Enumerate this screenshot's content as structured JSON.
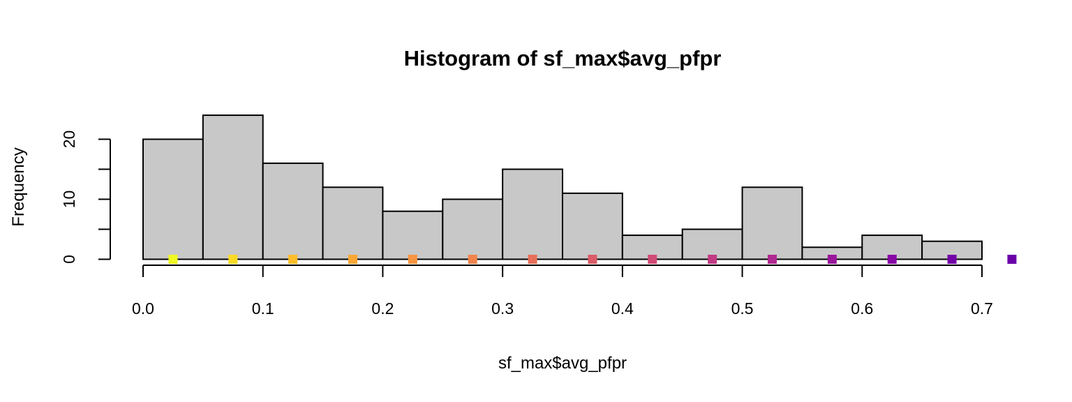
{
  "chart_data": {
    "type": "bar",
    "title": "Histogram of sf_max$avg_pfpr",
    "xlabel": "sf_max$avg_pfpr",
    "ylabel": "Frequency",
    "xlim": [
      0.0,
      0.7
    ],
    "ylim": [
      0,
      24
    ],
    "bin_width": 0.05,
    "bins": [
      {
        "x0": 0.0,
        "x1": 0.05,
        "count": 20
      },
      {
        "x0": 0.05,
        "x1": 0.1,
        "count": 24
      },
      {
        "x0": 0.1,
        "x1": 0.15,
        "count": 16
      },
      {
        "x0": 0.15,
        "x1": 0.2,
        "count": 12
      },
      {
        "x0": 0.2,
        "x1": 0.25,
        "count": 8
      },
      {
        "x0": 0.25,
        "x1": 0.3,
        "count": 10
      },
      {
        "x0": 0.3,
        "x1": 0.35,
        "count": 15
      },
      {
        "x0": 0.35,
        "x1": 0.4,
        "count": 11
      },
      {
        "x0": 0.4,
        "x1": 0.45,
        "count": 4
      },
      {
        "x0": 0.45,
        "x1": 0.5,
        "count": 5
      },
      {
        "x0": 0.5,
        "x1": 0.55,
        "count": 12
      },
      {
        "x0": 0.55,
        "x1": 0.6,
        "count": 2
      },
      {
        "x0": 0.6,
        "x1": 0.65,
        "count": 4
      },
      {
        "x0": 0.65,
        "x1": 0.7,
        "count": 3
      }
    ],
    "x_ticks": [
      "0.0",
      "0.1",
      "0.2",
      "0.3",
      "0.4",
      "0.5",
      "0.6",
      "0.7"
    ],
    "y_ticks": [
      "0",
      "10",
      "20"
    ],
    "markers": [
      {
        "x": 0.025,
        "color": "#F0F921"
      },
      {
        "x": 0.075,
        "color": "#F9DA24"
      },
      {
        "x": 0.125,
        "color": "#FDBC2A"
      },
      {
        "x": 0.175,
        "color": "#FCA636"
      },
      {
        "x": 0.225,
        "color": "#F89540"
      },
      {
        "x": 0.275,
        "color": "#F2844B"
      },
      {
        "x": 0.325,
        "color": "#E76F5A"
      },
      {
        "x": 0.375,
        "color": "#DB5C68"
      },
      {
        "x": 0.425,
        "color": "#D04A76"
      },
      {
        "x": 0.475,
        "color": "#C13A84"
      },
      {
        "x": 0.525,
        "color": "#B02991"
      },
      {
        "x": 0.575,
        "color": "#9A179B"
      },
      {
        "x": 0.625,
        "color": "#8808A6"
      },
      {
        "x": 0.675,
        "color": "#7301A8"
      },
      {
        "x": 0.725,
        "color": "#6A00A8"
      }
    ]
  }
}
